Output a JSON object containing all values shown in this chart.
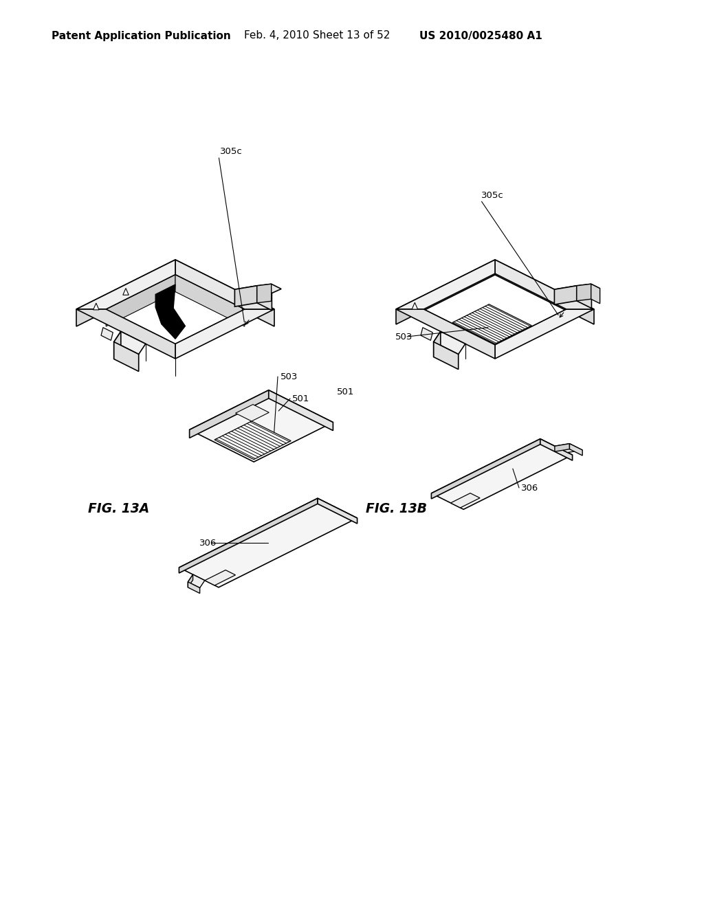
{
  "background_color": "#ffffff",
  "header_text": "Patent Application Publication",
  "header_date": "Feb. 4, 2010",
  "header_sheet": "Sheet 13 of 52",
  "header_patent": "US 2010/0025480 A1",
  "header_fontsize": 11,
  "fig13a_label": "FIG. 13A",
  "fig13b_label": "FIG. 13B"
}
